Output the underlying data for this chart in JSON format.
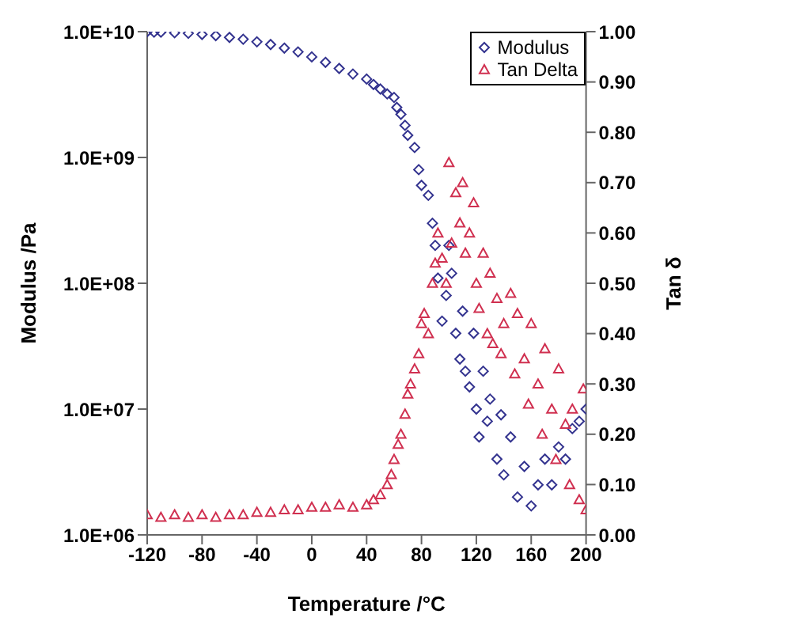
{
  "chart_data": {
    "type": "scatter",
    "xlabel": "Temperature /°C",
    "ylabel": "Modulus /Pa",
    "y2label": "Tan δ",
    "log": "y",
    "legend": "top right",
    "grid": false,
    "xlim": [
      -120,
      200
    ],
    "xticks": [
      -120,
      -80,
      -40,
      0,
      40,
      80,
      120,
      160,
      200
    ],
    "ylim": [
      1000000,
      10000000000
    ],
    "yticks": [
      {
        "value": 1000000,
        "label": "1.0E+06"
      },
      {
        "value": 10000000,
        "label": "1.0E+07"
      },
      {
        "value": 100000000,
        "label": "1.0E+08"
      },
      {
        "value": 1000000000,
        "label": "1.0E+09"
      },
      {
        "value": 10000000000,
        "label": "1.0E+10"
      }
    ],
    "y2lim": [
      0,
      1
    ],
    "y2ticks": [
      {
        "value": 0,
        "label": "0.00"
      },
      {
        "value": 0.1,
        "label": "0.10"
      },
      {
        "value": 0.2,
        "label": "0.20"
      },
      {
        "value": 0.3,
        "label": "0.30"
      },
      {
        "value": 0.4,
        "label": "0.40"
      },
      {
        "value": 0.5,
        "label": "0.50"
      },
      {
        "value": 0.6,
        "label": "0.60"
      },
      {
        "value": 0.7,
        "label": "0.70"
      },
      {
        "value": 0.8,
        "label": "0.80"
      },
      {
        "value": 0.9,
        "label": "0.90"
      },
      {
        "value": 1,
        "label": "1.00"
      }
    ],
    "series": [
      {
        "name": "Modulus",
        "color": "#33338f",
        "marker": "diamond",
        "x": [
          -120,
          -115,
          -110,
          -100,
          -90,
          -80,
          -70,
          -60,
          -50,
          -40,
          -30,
          -20,
          -10,
          0,
          10,
          20,
          30,
          40,
          45,
          50,
          55,
          60,
          62,
          65,
          68,
          70,
          75,
          78,
          80,
          85,
          88,
          90,
          92,
          95,
          98,
          100,
          102,
          105,
          108,
          110,
          112,
          115,
          118,
          120,
          122,
          125,
          128,
          130,
          135,
          138,
          140,
          145,
          150,
          155,
          160,
          165,
          170,
          175,
          180,
          185,
          190,
          195,
          200
        ],
        "values": [
          10000000000.0,
          9900000000.0,
          9900000000.0,
          9800000000.0,
          9700000000.0,
          9500000000.0,
          9300000000.0,
          9000000000.0,
          8700000000.0,
          8300000000.0,
          7900000000.0,
          7400000000.0,
          6900000000.0,
          6300000000.0,
          5700000000.0,
          5100000000.0,
          4600000000.0,
          4200000000.0,
          3800000000.0,
          3500000000.0,
          3200000000.0,
          3000000000.0,
          2500000000.0,
          2200000000.0,
          1800000000.0,
          1500000000.0,
          1200000000.0,
          800000000.0,
          600000000.0,
          500000000.0,
          300000000.0,
          200000000.0,
          110000000.0,
          50000000.0,
          80000000.0,
          200000000.0,
          120000000.0,
          40000000.0,
          25000000.0,
          60000000.0,
          20000000.0,
          15000000.0,
          40000000.0,
          10000000.0,
          6000000.0,
          20000000.0,
          8000000.0,
          12000000.0,
          4000000.0,
          9000000.0,
          3000000.0,
          6000000.0,
          2000000.0,
          3500000.0,
          1700000.0,
          2500000.0,
          4000000.0,
          2500000.0,
          5000000.0,
          4000000.0,
          7000000.0,
          8000000.0,
          10000000.0
        ]
      },
      {
        "name": "Tan Delta",
        "color": "#d03050",
        "marker": "triangle",
        "axis": "y2",
        "x": [
          -120,
          -110,
          -100,
          -90,
          -80,
          -70,
          -60,
          -50,
          -40,
          -30,
          -20,
          -10,
          0,
          10,
          20,
          30,
          40,
          45,
          50,
          55,
          58,
          60,
          63,
          65,
          68,
          70,
          72,
          75,
          78,
          80,
          82,
          85,
          88,
          90,
          92,
          95,
          98,
          100,
          102,
          105,
          108,
          110,
          112,
          115,
          118,
          120,
          122,
          125,
          128,
          130,
          132,
          135,
          138,
          140,
          145,
          148,
          150,
          155,
          158,
          160,
          165,
          168,
          170,
          175,
          178,
          180,
          185,
          188,
          190,
          195,
          198,
          200
        ],
        "values": [
          0.04,
          0.035,
          0.04,
          0.035,
          0.04,
          0.035,
          0.04,
          0.04,
          0.045,
          0.045,
          0.05,
          0.05,
          0.055,
          0.055,
          0.06,
          0.055,
          0.06,
          0.07,
          0.08,
          0.1,
          0.12,
          0.15,
          0.18,
          0.2,
          0.24,
          0.28,
          0.3,
          0.33,
          0.36,
          0.42,
          0.44,
          0.4,
          0.5,
          0.54,
          0.6,
          0.55,
          0.5,
          0.74,
          0.58,
          0.68,
          0.62,
          0.7,
          0.56,
          0.6,
          0.66,
          0.5,
          0.45,
          0.56,
          0.4,
          0.52,
          0.38,
          0.47,
          0.36,
          0.42,
          0.48,
          0.32,
          0.44,
          0.35,
          0.26,
          0.42,
          0.3,
          0.2,
          0.37,
          0.25,
          0.15,
          0.33,
          0.22,
          0.1,
          0.25,
          0.07,
          0.29,
          0.05
        ]
      }
    ]
  }
}
